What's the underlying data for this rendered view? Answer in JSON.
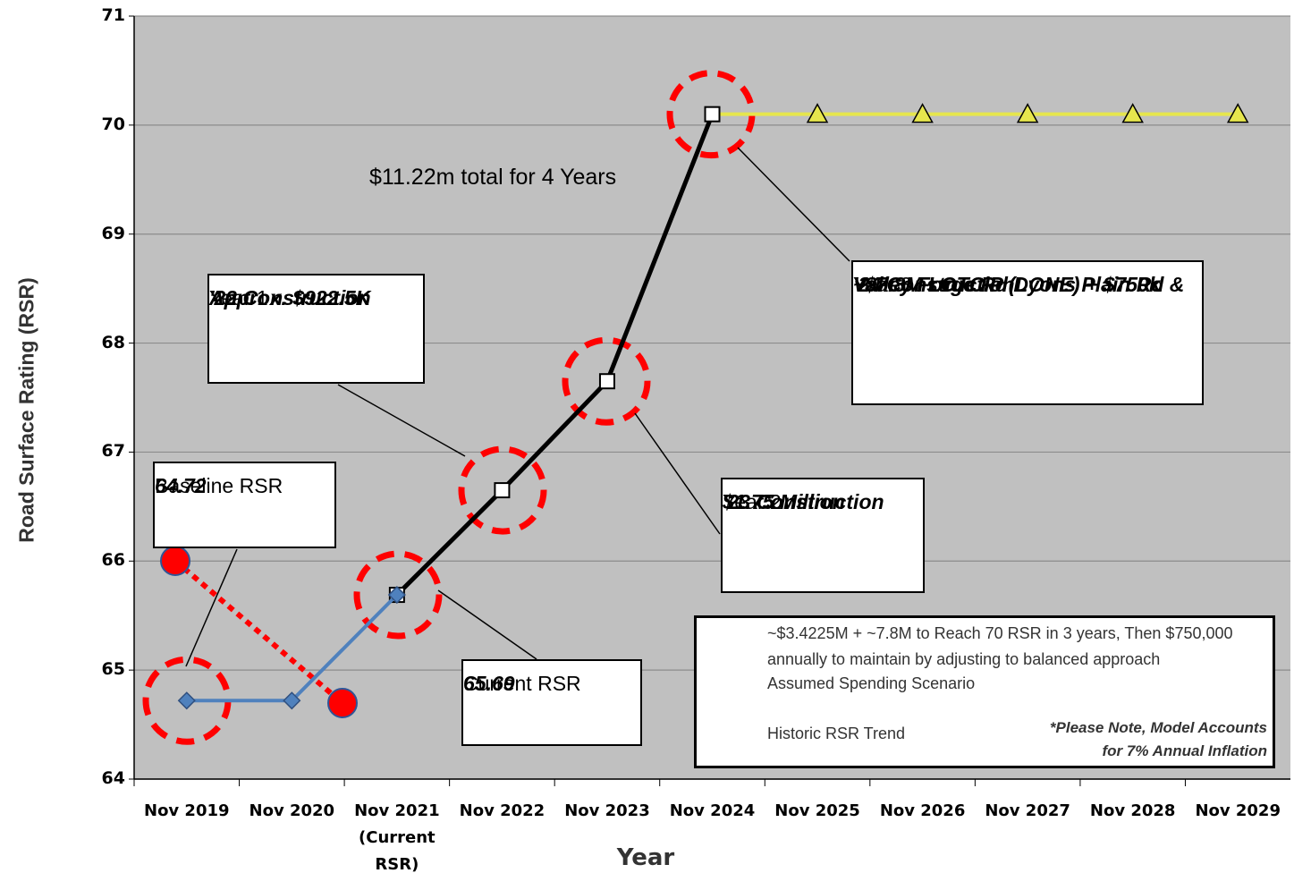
{
  "chart_data": {
    "type": "line",
    "y_label": "Road Surface Rating (RSR)",
    "x_label": "Year",
    "categories": [
      "Nov 2019",
      "Nov 2020",
      "Nov 2021\n(Current\nRSR)",
      "Nov 2022",
      "Nov 2023",
      "Nov 2024",
      "Nov 2025",
      "Nov 2026",
      "Nov 2027",
      "Nov 2028",
      "Nov 2029"
    ],
    "ylim": [
      64,
      71
    ],
    "yticks": [
      64,
      65,
      66,
      67,
      68,
      69,
      70,
      71
    ],
    "grid": true,
    "series": [
      {
        "name": "~$3.4225M + ~7.8M to Reach 70 RSR in 3 years, Then $750,000 annually to maintain by adjusting to balanced approach",
        "color": "#e6e64d",
        "marker": "triangle",
        "values": [
          null,
          null,
          null,
          null,
          null,
          70.1,
          70.1,
          70.1,
          70.1,
          70.1,
          70.1
        ]
      },
      {
        "name": "Assumed Spending Scenario",
        "color": "#000000",
        "marker": "square",
        "values": [
          null,
          null,
          65.69,
          66.65,
          67.65,
          70.1,
          null,
          null,
          null,
          null,
          null
        ]
      },
      {
        "name": "Historic RSR Trend",
        "color": "#4f81bd",
        "marker": "diamond",
        "values": [
          64.72,
          64.72,
          65.69,
          null,
          null,
          null,
          null,
          null,
          null,
          null,
          null
        ]
      }
    ],
    "annotations": [
      {
        "lines": [
          "Year 1",
          "Approx. $922.5K",
          "'22 Construction"
        ]
      },
      {
        "lines": [
          "Baseline RSR",
          "64.72"
        ]
      },
      {
        "lines": [
          "Current RSR",
          "65.69"
        ]
      },
      {
        "lines": [
          "Year 2",
          "$1.75 Million",
          "'23 Construction"
        ]
      },
      {
        "lines": [
          "Year 3",
          "~$7.8M LOTCIP (Lyons Plain Rd &",
          "Valley Forge Rd DONE)  + $750k",
          "'24 Construction"
        ]
      }
    ],
    "total_note": "$11.22m total for 4 Years",
    "legend_note": "*Please Note, Model Accounts for 7% Annual Inflation"
  }
}
